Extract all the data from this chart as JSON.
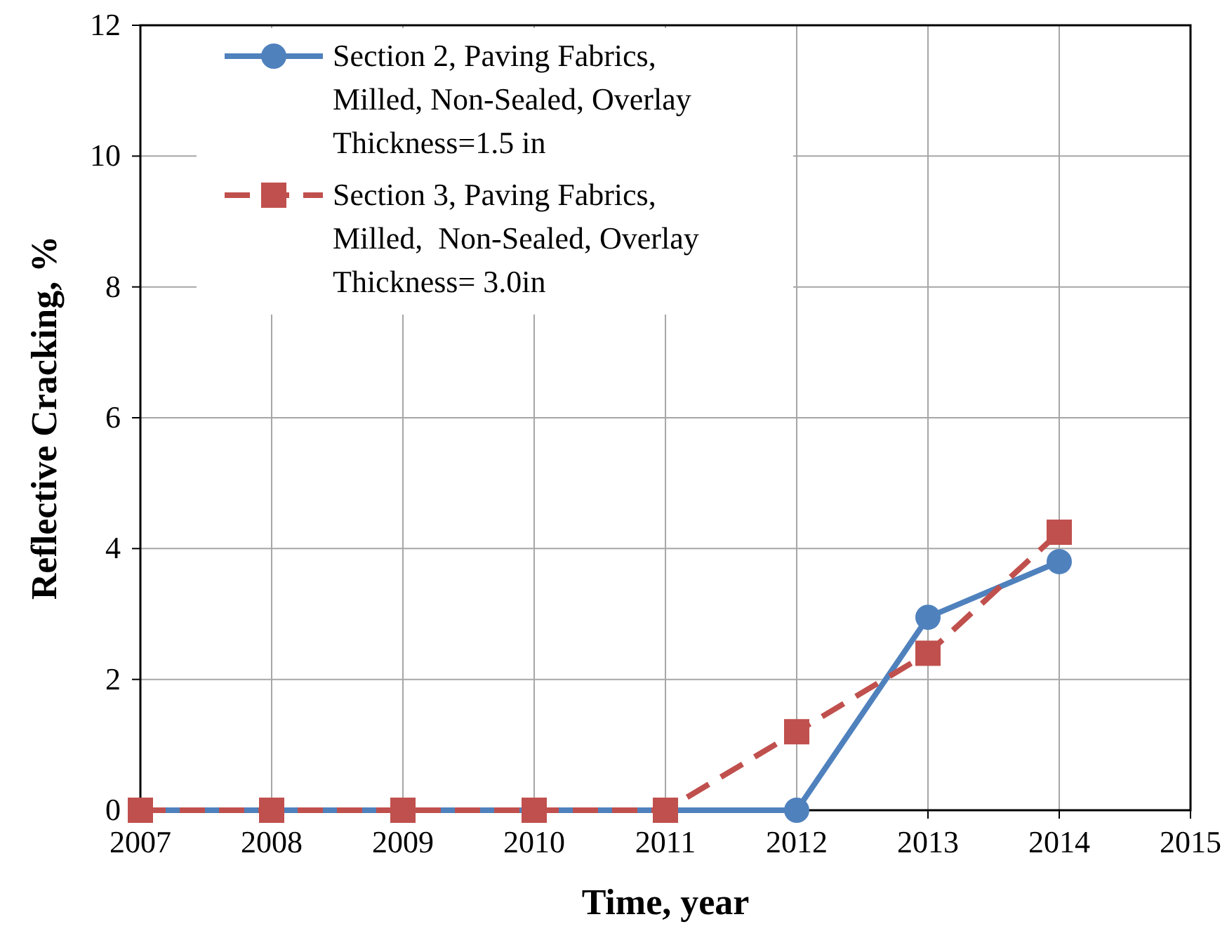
{
  "chart_data": {
    "type": "line",
    "xlabel": "Time, year",
    "ylabel": "Reflective Cracking, %",
    "x": [
      2007,
      2008,
      2009,
      2010,
      2011,
      2012,
      2013,
      2014
    ],
    "series": [
      {
        "name": "Section 2, Paving Fabrics, Milled, Non-Sealed, Overlay Thickness=1.5 in",
        "color": "#4f81bd",
        "values": [
          0,
          0,
          0,
          0,
          0,
          0,
          2.95,
          3.8
        ],
        "marker": "circle",
        "line_style": "solid"
      },
      {
        "name": "Section 3, Paving Fabrics, Milled,  Non-Sealed, Overlay Thickness= 3.0in",
        "color": "#c0504d",
        "values": [
          0,
          0,
          0,
          0,
          0,
          1.2,
          2.4,
          4.25
        ],
        "marker": "square",
        "line_style": "dashed"
      }
    ],
    "xlim": [
      2007,
      2015
    ],
    "xticks": [
      2007,
      2008,
      2009,
      2010,
      2011,
      2012,
      2013,
      2014,
      2015
    ],
    "ylim": [
      0,
      12
    ],
    "yticks": [
      0,
      2,
      4,
      6,
      8,
      10,
      12
    ],
    "grid": true,
    "legend": "top left"
  }
}
